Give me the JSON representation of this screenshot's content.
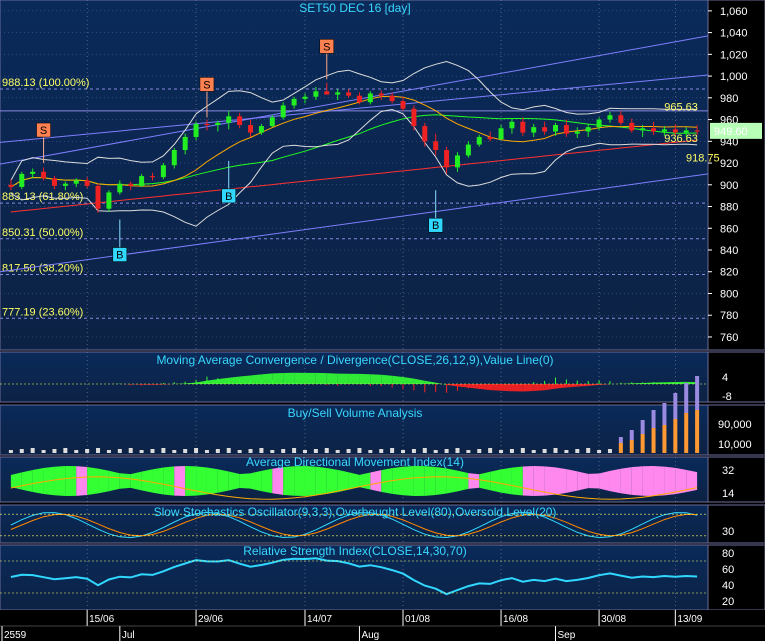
{
  "chart_data": {
    "type": "candlestick",
    "title": "SET50 DEC 16  [day]",
    "last_price": "949.60",
    "price_axis": {
      "ticks": [
        "1,060",
        "1,040",
        "1,020",
        "1,000",
        "980",
        "960",
        "940",
        "920",
        "900",
        "880",
        "860",
        "840",
        "820",
        "800",
        "780",
        "760"
      ],
      "ylim": [
        748,
        1070
      ]
    },
    "fibonacci": [
      {
        "label": "988.13 (100.00%)",
        "value": 988.13
      },
      {
        "label": "883.13 (61.80%)",
        "value": 883.13
      },
      {
        "label": "850.31 (50.00%)",
        "value": 850.31
      },
      {
        "label": "817.50 (38.20%)",
        "value": 817.5
      },
      {
        "label": "777.19 (23.60%)",
        "value": 777.19
      }
    ],
    "level_labels": [
      {
        "label": "965.63",
        "day": 62
      },
      {
        "label": "936.63",
        "day": 62
      },
      {
        "label": "918.75",
        "day": 64
      }
    ],
    "signals": [
      {
        "type": "S",
        "day": 3,
        "price": 920
      },
      {
        "type": "B",
        "day": 10,
        "price": 868
      },
      {
        "type": "S",
        "day": 18,
        "price": 962
      },
      {
        "type": "B",
        "day": 20,
        "price": 922
      },
      {
        "type": "S",
        "day": 29,
        "price": 997
      },
      {
        "type": "B",
        "day": 39,
        "price": 895
      }
    ],
    "candles": [
      [
        900,
        905,
        895,
        898
      ],
      [
        898,
        912,
        896,
        910
      ],
      [
        910,
        915,
        906,
        912
      ],
      [
        912,
        916,
        904,
        906
      ],
      [
        906,
        908,
        896,
        899
      ],
      [
        899,
        903,
        895,
        901
      ],
      [
        901,
        906,
        898,
        904
      ],
      [
        904,
        907,
        897,
        899
      ],
      [
        899,
        901,
        874,
        878
      ],
      [
        878,
        895,
        875,
        893
      ],
      [
        893,
        904,
        891,
        901
      ],
      [
        901,
        903,
        895,
        899
      ],
      [
        899,
        910,
        898,
        908
      ],
      [
        908,
        911,
        904,
        907
      ],
      [
        907,
        920,
        905,
        918
      ],
      [
        918,
        934,
        915,
        932
      ],
      [
        932,
        947,
        928,
        944
      ],
      [
        944,
        958,
        941,
        956
      ],
      [
        956,
        960,
        950,
        955
      ],
      [
        955,
        959,
        949,
        957
      ],
      [
        957,
        968,
        951,
        963
      ],
      [
        963,
        966,
        952,
        955
      ],
      [
        955,
        960,
        944,
        948
      ],
      [
        948,
        956,
        946,
        954
      ],
      [
        954,
        964,
        953,
        962
      ],
      [
        962,
        976,
        960,
        973
      ],
      [
        973,
        981,
        970,
        979
      ],
      [
        979,
        984,
        975,
        981
      ],
      [
        981,
        990,
        978,
        986
      ],
      [
        986,
        994,
        983,
        983
      ],
      [
        983,
        988,
        978,
        985
      ],
      [
        985,
        988,
        980,
        982
      ],
      [
        982,
        985,
        974,
        976
      ],
      [
        976,
        986,
        974,
        984
      ],
      [
        984,
        987,
        978,
        982
      ],
      [
        982,
        985,
        975,
        977
      ],
      [
        977,
        981,
        968,
        970
      ],
      [
        970,
        973,
        950,
        954
      ],
      [
        954,
        957,
        935,
        940
      ],
      [
        940,
        947,
        927,
        932
      ],
      [
        932,
        935,
        910,
        916
      ],
      [
        916,
        930,
        912,
        927
      ],
      [
        927,
        940,
        925,
        937
      ],
      [
        937,
        946,
        935,
        944
      ],
      [
        944,
        949,
        940,
        942
      ],
      [
        942,
        955,
        941,
        952
      ],
      [
        952,
        961,
        947,
        958
      ],
      [
        958,
        962,
        945,
        948
      ],
      [
        948,
        956,
        944,
        953
      ],
      [
        953,
        958,
        946,
        949
      ],
      [
        949,
        957,
        945,
        955
      ],
      [
        955,
        960,
        944,
        947
      ],
      [
        947,
        953,
        943,
        949
      ],
      [
        949,
        956,
        944,
        953
      ],
      [
        953,
        962,
        950,
        960
      ],
      [
        960,
        967,
        957,
        964
      ],
      [
        964,
        968,
        955,
        957
      ],
      [
        957,
        961,
        948,
        950
      ],
      [
        950,
        955,
        944,
        952
      ],
      [
        952,
        958,
        946,
        949
      ],
      [
        949,
        954,
        945,
        951
      ],
      [
        951,
        956,
        945,
        948
      ],
      [
        948,
        953,
        944,
        950
      ],
      [
        950,
        955,
        946,
        949
      ]
    ],
    "panels": [
      {
        "title": "Moving Average Convergence / Divergence(CLOSE,26,12,9),Value Line(0)",
        "ticks": [
          "4",
          "-8"
        ]
      },
      {
        "title": "Buy/Sell Volume Analysis",
        "ticks": [
          "90,000",
          "10,000"
        ]
      },
      {
        "title": "Average Directional Movement Index(14)",
        "ticks": [
          "32",
          "14"
        ]
      },
      {
        "title": "Slow Stochastics Oscillator(9,3,3),Overbought Level(80),Oversold Level(20)",
        "ticks": [
          "30"
        ]
      },
      {
        "title": "Relative Strength Index(CLOSE,14,30,70)",
        "ticks": [
          "80",
          "60",
          "40",
          "20"
        ]
      }
    ],
    "date_labels": [
      "15/06",
      "29/06",
      "14/07",
      "01/08",
      "16/08",
      "30/08",
      "13/09"
    ],
    "month_labels": [
      "2559",
      "Jul",
      "Aug",
      "Sep"
    ],
    "grid": true
  }
}
